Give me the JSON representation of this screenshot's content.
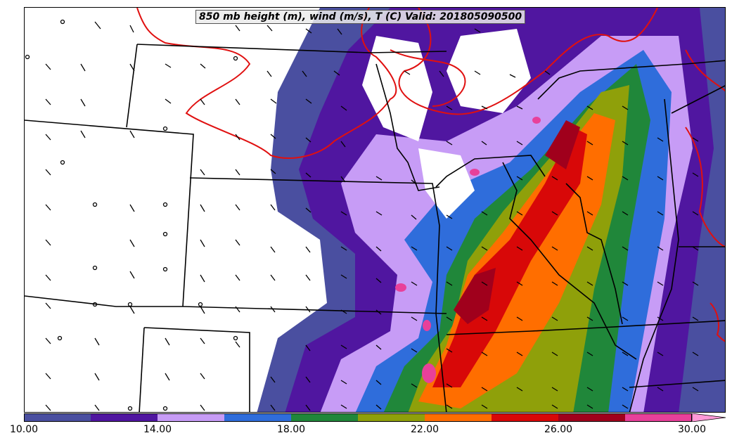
{
  "title": "850 mb height (m), wind (m/s), T (C) Valid: 201805090500",
  "colorbar": {
    "colors": [
      "#4a4fa0",
      "#5016a0",
      "#c79cf6",
      "#2f6ddb",
      "#20873a",
      "#8fa00a",
      "#ff6e00",
      "#d80808",
      "#a0001c",
      "#e8409a",
      "#ff9ad8"
    ],
    "ticks": [
      "10.00",
      "14.00",
      "18.00",
      "22.00",
      "26.00",
      "30.00"
    ]
  },
  "overlay_colors": {
    "isotherm": "#e01010",
    "borders": "#000000",
    "barbs": "#000000"
  }
}
